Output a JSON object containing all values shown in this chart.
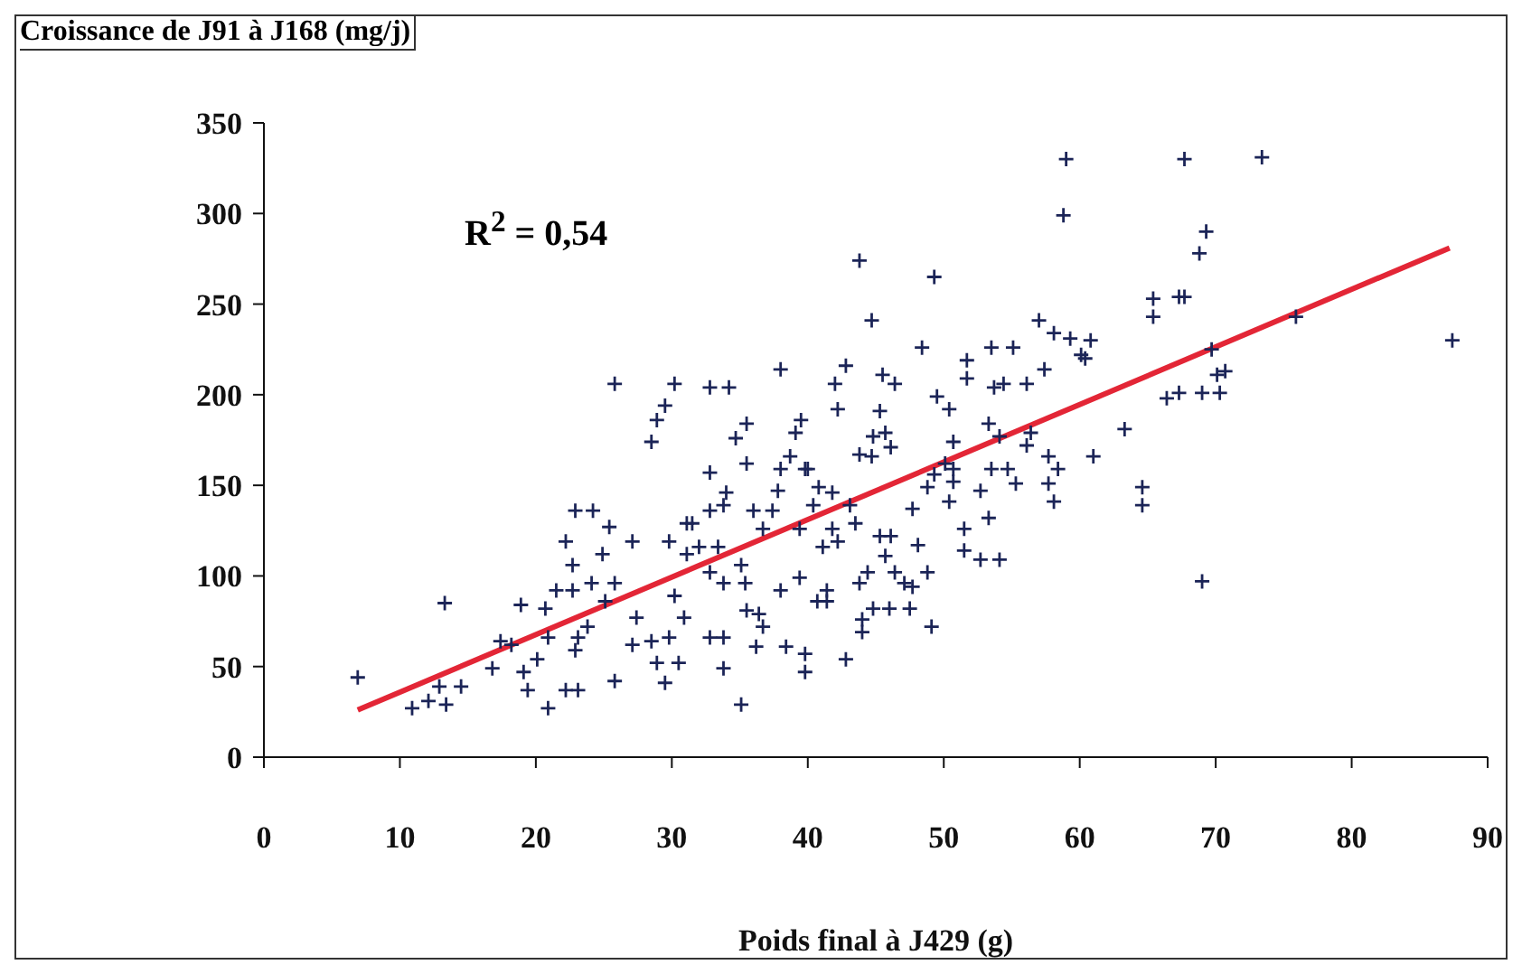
{
  "chart_data": {
    "type": "scatter",
    "ylabel": "Croissance de J91 à J168 (mg/j)",
    "xlabel": "Poids final à J429 (g)",
    "annotations": [
      "R$^{2}$ = 0,54"
    ],
    "xlim": [
      0,
      90
    ],
    "xticks": [
      0,
      10,
      20,
      30,
      40,
      50,
      60,
      70,
      80,
      90
    ],
    "ylim": [
      0,
      350
    ],
    "yticks": [
      0,
      50,
      100,
      150,
      200,
      250,
      300,
      350
    ],
    "grid": false,
    "series": [
      {
        "marker": "cross",
        "color": "#1b2457",
        "x": [
          6.9,
          13.3,
          10.9,
          12.1,
          13.4,
          14.5,
          12.9,
          16.8,
          17.4,
          18.2,
          18.9,
          19.1,
          19.4,
          20.1,
          20.7,
          20.9,
          20.9,
          22.2,
          23.1,
          21.5,
          22.7,
          24.1,
          22.2,
          22.9,
          24.2,
          22.7,
          23.1,
          22.9,
          23.8,
          25.1,
          25.4,
          25.8,
          25.8,
          24.9,
          25.8,
          27.1,
          27.4,
          27.1,
          28.5,
          28.9,
          29.5,
          30.2,
          28.5,
          29.8,
          28.9,
          29.5,
          30.2,
          30.5,
          31.1,
          31.1,
          30.9,
          29.8,
          32.8,
          34.2,
          38.0,
          43.8,
          49.3,
          44.7,
          48.4,
          42.0,
          42.8,
          42.2,
          45.5,
          46.4,
          49.5,
          50.4,
          45.3,
          51.7,
          51.7,
          53.5,
          55.1,
          53.7,
          54.4,
          56.1,
          57.4,
          57.0,
          58.1,
          59.3,
          60.1,
          58.8,
          59.0,
          35.5,
          34.7,
          39.5,
          39.1,
          35.5,
          32.8,
          38.0,
          38.7,
          39.8,
          37.8,
          34.0,
          43.8,
          44.7,
          45.7,
          46.1,
          44.8,
          50.7,
          50.7,
          49.3,
          53.3,
          54.1,
          56.4,
          56.1,
          57.7,
          58.4,
          57.7,
          58.1,
          53.5,
          54.7,
          55.3,
          52.7,
          53.3,
          50.1,
          50.7,
          50.4,
          48.8,
          51.5,
          51.5,
          52.7,
          54.1,
          47.7,
          48.1,
          48.8,
          49.1,
          45.3,
          46.1,
          45.7,
          46.4,
          47.1,
          47.7,
          44.8,
          46.0,
          47.5,
          44.0,
          44.0,
          43.8,
          44.4,
          42.8,
          41.8,
          42.2,
          43.5,
          41.1,
          40.7,
          41.4,
          41.4,
          39.4,
          38.4,
          39.8,
          39.8,
          36.4,
          36.7,
          36.2,
          35.1,
          32.8,
          33.8,
          33.8,
          35.5,
          38.0,
          39.4,
          36.7,
          37.4,
          36.0,
          35.1,
          35.4,
          32.8,
          33.8,
          32.0,
          33.4,
          32.8,
          33.8,
          40.8,
          41.8,
          40.0,
          40.4,
          43.1,
          31.5,
          67.7,
          73.4,
          69.3,
          68.8,
          65.4,
          65.4,
          67.3,
          67.7,
          75.9,
          87.4,
          69.7,
          60.8,
          60.4,
          66.4,
          67.3,
          69.0,
          70.3,
          70.1,
          70.7,
          63.3,
          61.0,
          64.6,
          64.6,
          69.0
        ],
        "values": [
          44,
          85,
          27,
          31,
          29,
          39,
          39,
          49,
          64,
          62,
          84,
          47,
          37,
          54,
          82,
          66,
          27,
          37,
          37,
          92,
          92,
          96,
          119,
          136,
          136,
          106,
          66,
          59,
          72,
          86,
          127,
          42,
          206,
          112,
          96,
          119,
          77,
          62,
          174,
          186,
          194,
          206,
          64,
          66,
          52,
          41,
          89,
          52,
          129,
          112,
          77,
          119,
          204,
          204,
          214,
          274,
          265,
          241,
          226,
          206,
          216,
          192,
          211,
          206,
          199,
          192,
          191,
          219,
          209,
          226,
          226,
          204,
          206,
          206,
          214,
          241,
          234,
          231,
          222,
          299,
          330,
          184,
          176,
          186,
          179,
          162,
          157,
          159,
          166,
          159,
          147,
          146,
          167,
          166,
          179,
          171,
          177,
          174,
          159,
          156,
          184,
          177,
          179,
          172,
          166,
          159,
          151,
          141,
          159,
          159,
          151,
          147,
          132,
          162,
          152,
          141,
          149,
          126,
          114,
          109,
          109,
          137,
          117,
          102,
          72,
          122,
          122,
          111,
          102,
          96,
          94,
          82,
          82,
          82,
          76,
          69,
          96,
          102,
          54,
          126,
          119,
          129,
          116,
          86,
          86,
          92,
          99,
          61,
          57,
          47,
          79,
          72,
          61,
          29,
          66,
          66,
          49,
          81,
          92,
          126,
          126,
          136,
          136,
          106,
          96,
          102,
          96,
          116,
          116,
          136,
          139,
          149,
          146,
          159,
          139,
          139,
          129,
          330,
          331,
          290,
          278,
          253,
          243,
          254,
          254,
          243,
          230,
          225,
          230,
          220,
          198,
          201,
          201,
          201,
          211,
          213,
          181,
          166,
          149,
          139,
          97
        ]
      },
      {
        "type": "line",
        "color": "#e32636",
        "x": [
          6.9,
          87.2
        ],
        "values": [
          26,
          281
        ]
      }
    ]
  }
}
